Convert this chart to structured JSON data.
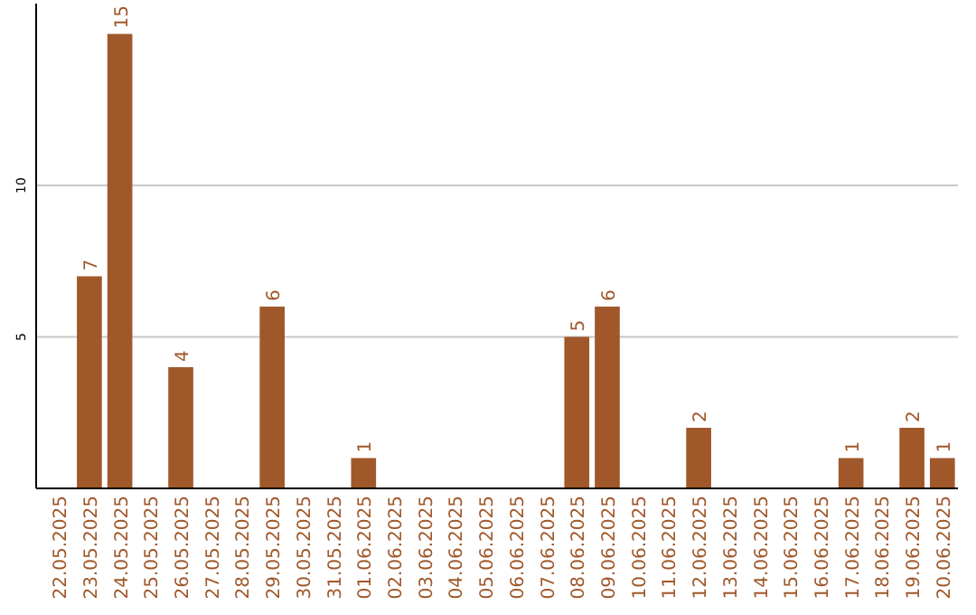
{
  "chart_data": {
    "type": "bar",
    "categories": [
      "22.05.2025",
      "23.05.2025",
      "24.05.2025",
      "25.05.2025",
      "26.05.2025",
      "27.05.2025",
      "28.05.2025",
      "29.05.2025",
      "30.05.2025",
      "31.05.2025",
      "01.06.2025",
      "02.06.2025",
      "03.06.2025",
      "04.06.2025",
      "05.06.2025",
      "06.06.2025",
      "07.06.2025",
      "08.06.2025",
      "09.06.2025",
      "10.06.2025",
      "11.06.2025",
      "12.06.2025",
      "13.06.2025",
      "14.06.2025",
      "15.06.2025",
      "16.06.2025",
      "17.06.2025",
      "18.06.2025",
      "19.06.2025",
      "20.06.2025"
    ],
    "values": [
      0,
      7,
      15,
      0,
      4,
      0,
      0,
      6,
      0,
      0,
      1,
      0,
      0,
      0,
      0,
      0,
      0,
      5,
      6,
      0,
      0,
      2,
      0,
      0,
      0,
      0,
      1,
      0,
      2,
      1
    ],
    "value_labels": [
      null,
      "7",
      "15",
      null,
      "4",
      null,
      null,
      "6",
      null,
      null,
      "1",
      null,
      null,
      null,
      null,
      null,
      null,
      "5",
      "6",
      null,
      null,
      "2",
      null,
      null,
      null,
      null,
      "1",
      null,
      "2",
      "1"
    ],
    "color": "#a0582b",
    "ylim": [
      0,
      16
    ],
    "yticks": [
      5,
      10
    ],
    "grid": "y"
  }
}
